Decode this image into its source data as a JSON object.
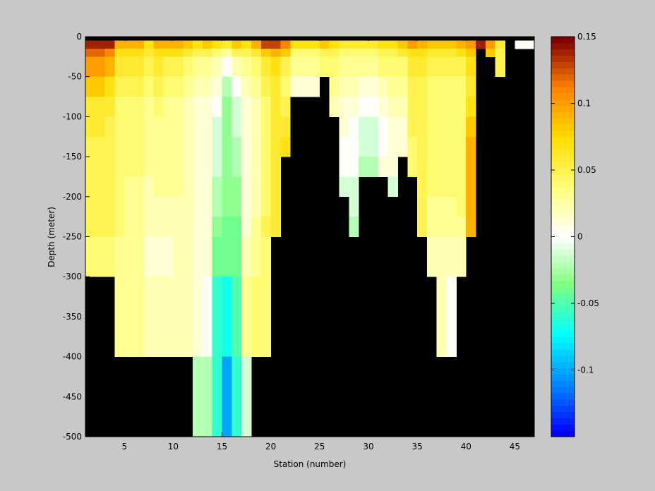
{
  "chart_data": {
    "type": "heatmap",
    "xlabel": "Station (number)",
    "ylabel": "Depth (meter)",
    "xlim": [
      1,
      47
    ],
    "ylim": [
      -500,
      0
    ],
    "xticks": [
      5,
      10,
      15,
      20,
      25,
      30,
      35,
      40,
      45
    ],
    "xtick_labels": [
      "5",
      "10",
      "15",
      "20",
      "25",
      "30",
      "35",
      "40",
      "45"
    ],
    "yticks": [
      0,
      -50,
      -100,
      -150,
      -200,
      -250,
      -300,
      -350,
      -400,
      -450,
      -500
    ],
    "ytick_labels": [
      "0",
      "-50",
      "-100",
      "-150",
      "-200",
      "-250",
      "-300",
      "-350",
      "-400",
      "-450",
      "-500"
    ],
    "colorbar": {
      "colormap": "jet-white",
      "clim": [
        -0.15,
        0.15
      ],
      "ticks": [
        0.15,
        0.1,
        0.05,
        0,
        -0.05,
        -0.1
      ],
      "tick_labels": [
        "0.15",
        "0.1",
        "0.05",
        "0",
        "-0.05",
        "-0.1"
      ],
      "levels": 64
    },
    "mask_color": "#000000",
    "depth_bins": [
      {
        "top": 0,
        "bottom": -5
      },
      {
        "top": -5,
        "bottom": -15
      },
      {
        "top": -15,
        "bottom": -25
      },
      {
        "top": -25,
        "bottom": -50
      },
      {
        "top": -50,
        "bottom": -75
      },
      {
        "top": -75,
        "bottom": -100
      },
      {
        "top": -100,
        "bottom": -125
      },
      {
        "top": -125,
        "bottom": -150
      },
      {
        "top": -150,
        "bottom": -175
      },
      {
        "top": -175,
        "bottom": -200
      },
      {
        "top": -200,
        "bottom": -225
      },
      {
        "top": -225,
        "bottom": -250
      },
      {
        "top": -250,
        "bottom": -300
      },
      {
        "top": -300,
        "bottom": -400
      },
      {
        "top": -400,
        "bottom": -500
      }
    ],
    "station_columns": [
      {
        "from": 1,
        "to": 3,
        "values": [
          null,
          0.14,
          0.12,
          0.1,
          0.08,
          0.06,
          0.06,
          0.05,
          0.05,
          0.05,
          0.05,
          0.05,
          0.04,
          null,
          null
        ]
      },
      {
        "from": 3,
        "to": 4,
        "values": [
          null,
          0.14,
          0.11,
          0.09,
          0.07,
          0.06,
          0.05,
          0.05,
          0.05,
          0.05,
          0.05,
          0.05,
          0.04,
          null,
          null
        ]
      },
      {
        "from": 4,
        "to": 5,
        "values": [
          null,
          0.09,
          0.07,
          0.06,
          0.05,
          0.04,
          0.04,
          0.04,
          0.04,
          0.04,
          0.04,
          0.04,
          0.03,
          0.03,
          null
        ]
      },
      {
        "from": 5,
        "to": 7,
        "values": [
          null,
          0.09,
          0.07,
          0.06,
          0.05,
          0.04,
          0.04,
          0.04,
          0.04,
          0.03,
          0.03,
          0.03,
          0.03,
          0.03,
          null
        ]
      },
      {
        "from": 7,
        "to": 8,
        "values": [
          null,
          0.07,
          0.06,
          0.05,
          0.04,
          0.03,
          0.03,
          0.03,
          0.03,
          0.02,
          0.02,
          0.02,
          0.01,
          0.02,
          null
        ]
      },
      {
        "from": 8,
        "to": 9,
        "values": [
          null,
          0.09,
          0.07,
          0.06,
          0.05,
          0.04,
          0.03,
          0.03,
          0.03,
          0.03,
          0.02,
          0.02,
          0.01,
          0.02,
          null
        ]
      },
      {
        "from": 9,
        "to": 10,
        "values": [
          null,
          0.09,
          0.07,
          0.05,
          0.04,
          0.03,
          0.03,
          0.03,
          0.03,
          0.03,
          0.02,
          0.02,
          0.01,
          0.02,
          null
        ]
      },
      {
        "from": 10,
        "to": 11,
        "values": [
          null,
          0.09,
          0.07,
          0.05,
          0.04,
          0.03,
          0.03,
          0.03,
          0.03,
          0.03,
          0.02,
          0.02,
          0.02,
          0.02,
          null
        ]
      },
      {
        "from": 11,
        "to": 12,
        "values": [
          null,
          0.08,
          0.06,
          0.04,
          0.03,
          0.02,
          0.02,
          0.02,
          0.02,
          0.02,
          0.02,
          0.02,
          0.02,
          0.02,
          null
        ]
      },
      {
        "from": 12,
        "to": 13,
        "values": [
          null,
          0.07,
          0.05,
          0.03,
          0.02,
          0.01,
          0.01,
          0.01,
          0.01,
          0.01,
          0.01,
          0.01,
          0.01,
          0.01,
          -0.02
        ]
      },
      {
        "from": 13,
        "to": 14,
        "values": [
          null,
          0.08,
          0.05,
          0.03,
          0.02,
          0.01,
          0.01,
          0.01,
          0.01,
          0.01,
          0.01,
          0.01,
          0.01,
          0.0,
          -0.02
        ]
      },
      {
        "from": 14,
        "to": 15,
        "values": [
          null,
          0.07,
          0.04,
          0.02,
          0.01,
          0.0,
          -0.01,
          -0.01,
          -0.01,
          -0.02,
          -0.02,
          -0.03,
          -0.04,
          -0.06,
          -0.06
        ]
      },
      {
        "from": 15,
        "to": 16,
        "values": [
          null,
          0.06,
          0.03,
          0.0,
          -0.02,
          -0.03,
          -0.03,
          -0.03,
          -0.03,
          -0.03,
          -0.03,
          -0.04,
          -0.04,
          -0.07,
          -0.1
        ]
      },
      {
        "from": 16,
        "to": 17,
        "values": [
          null,
          0.08,
          0.05,
          0.02,
          0.0,
          -0.01,
          -0.01,
          -0.02,
          -0.02,
          -0.03,
          -0.03,
          -0.04,
          -0.04,
          -0.05,
          -0.06
        ]
      },
      {
        "from": 17,
        "to": 18,
        "values": [
          null,
          0.07,
          0.05,
          0.03,
          0.02,
          0.01,
          0.01,
          0.01,
          0.01,
          0.01,
          0.01,
          0.01,
          0.02,
          0.03,
          -0.01
        ]
      },
      {
        "from": 18,
        "to": 19,
        "values": [
          null,
          0.09,
          0.06,
          0.04,
          0.03,
          0.02,
          0.02,
          0.02,
          0.02,
          0.02,
          0.02,
          0.03,
          0.03,
          0.04,
          null
        ]
      },
      {
        "from": 19,
        "to": 20,
        "values": [
          null,
          0.13,
          0.08,
          0.06,
          0.05,
          0.04,
          0.04,
          0.04,
          0.04,
          0.04,
          0.04,
          0.05,
          0.04,
          0.04,
          null
        ]
      },
      {
        "from": 20,
        "to": 21,
        "values": [
          null,
          0.13,
          0.09,
          0.07,
          0.06,
          0.06,
          0.06,
          0.06,
          0.06,
          0.06,
          0.06,
          0.06,
          null,
          null,
          null
        ]
      },
      {
        "from": 21,
        "to": 22,
        "values": [
          null,
          0.11,
          0.08,
          0.05,
          0.04,
          0.05,
          0.06,
          0.07,
          null,
          null,
          null,
          null,
          null,
          null,
          null
        ]
      },
      {
        "from": 22,
        "to": 25,
        "values": [
          null,
          0.07,
          0.04,
          0.03,
          0.01,
          null,
          null,
          null,
          null,
          null,
          null,
          null,
          null,
          null,
          null
        ]
      },
      {
        "from": 25,
        "to": 26,
        "values": [
          null,
          0.08,
          0.05,
          0.04,
          null,
          null,
          null,
          null,
          null,
          null,
          null,
          null,
          null,
          null,
          null
        ]
      },
      {
        "from": 26,
        "to": 27,
        "values": [
          null,
          0.07,
          0.05,
          0.04,
          0.03,
          0.02,
          null,
          null,
          null,
          null,
          null,
          null,
          null,
          null,
          null
        ]
      },
      {
        "from": 27,
        "to": 28,
        "values": [
          null,
          0.06,
          0.04,
          0.03,
          0.02,
          0.01,
          0.01,
          0.0,
          0.0,
          -0.01,
          null,
          null,
          null,
          null,
          null
        ]
      },
      {
        "from": 28,
        "to": 29,
        "values": [
          null,
          0.06,
          0.04,
          0.03,
          0.02,
          0.01,
          0.0,
          0.0,
          0.0,
          -0.01,
          -0.01,
          -0.02,
          null,
          null,
          null
        ]
      },
      {
        "from": 29,
        "to": 31,
        "values": [
          null,
          0.06,
          0.04,
          0.03,
          0.01,
          0.0,
          -0.01,
          -0.01,
          -0.02,
          null,
          null,
          null,
          null,
          null,
          null
        ]
      },
      {
        "from": 31,
        "to": 32,
        "values": [
          null,
          0.07,
          0.05,
          0.04,
          0.02,
          0.01,
          0.0,
          0.0,
          0.01,
          null,
          null,
          null,
          null,
          null,
          null
        ]
      },
      {
        "from": 32,
        "to": 33,
        "values": [
          null,
          0.07,
          0.05,
          0.04,
          0.03,
          0.02,
          0.01,
          0.01,
          0.01,
          -0.01,
          null,
          null,
          null,
          null,
          null
        ]
      },
      {
        "from": 33,
        "to": 34,
        "values": [
          null,
          0.08,
          0.06,
          0.04,
          0.03,
          0.02,
          0.01,
          0.01,
          null,
          null,
          null,
          null,
          null,
          null,
          null
        ]
      },
      {
        "from": 34,
        "to": 35,
        "values": [
          null,
          0.1,
          0.07,
          0.06,
          0.05,
          0.05,
          0.05,
          0.04,
          0.04,
          null,
          null,
          null,
          null,
          null,
          null
        ]
      },
      {
        "from": 35,
        "to": 36,
        "values": [
          null,
          0.09,
          0.07,
          0.06,
          0.05,
          0.05,
          0.05,
          0.05,
          0.05,
          0.05,
          0.05,
          0.05,
          null,
          null,
          null
        ]
      },
      {
        "from": 36,
        "to": 37,
        "values": [
          null,
          0.08,
          0.06,
          0.05,
          0.04,
          0.04,
          0.04,
          0.04,
          0.04,
          0.04,
          0.03,
          0.03,
          0.02,
          null,
          null
        ]
      },
      {
        "from": 37,
        "to": 38,
        "values": [
          null,
          0.08,
          0.06,
          0.05,
          0.04,
          0.04,
          0.04,
          0.04,
          0.04,
          0.04,
          0.03,
          0.03,
          0.02,
          0.02,
          null
        ]
      },
      {
        "from": 38,
        "to": 39,
        "values": [
          null,
          0.08,
          0.06,
          0.05,
          0.04,
          0.04,
          0.04,
          0.04,
          0.04,
          0.04,
          0.03,
          0.03,
          0.02,
          0.0,
          null
        ]
      },
      {
        "from": 39,
        "to": 40,
        "values": [
          null,
          0.09,
          0.07,
          0.05,
          0.04,
          0.04,
          0.04,
          0.04,
          0.04,
          0.04,
          0.04,
          0.03,
          0.02,
          null,
          null
        ]
      },
      {
        "from": 40,
        "to": 41,
        "values": [
          null,
          0.1,
          0.08,
          0.07,
          0.06,
          0.07,
          0.08,
          0.09,
          0.09,
          0.09,
          0.09,
          0.09,
          null,
          null,
          null
        ]
      },
      {
        "from": 41,
        "to": 42,
        "values": [
          null,
          0.14,
          null,
          null,
          null,
          null,
          null,
          null,
          null,
          null,
          null,
          null,
          null,
          null,
          null
        ]
      },
      {
        "from": 42,
        "to": 43,
        "values": [
          null,
          0.1,
          0.08,
          null,
          null,
          null,
          null,
          null,
          null,
          null,
          null,
          null,
          null,
          null,
          null
        ]
      },
      {
        "from": 43,
        "to": 44,
        "values": [
          null,
          0.06,
          0.05,
          0.05,
          null,
          null,
          null,
          null,
          null,
          null,
          null,
          null,
          null,
          null,
          null
        ]
      },
      {
        "from": 44,
        "to": 45,
        "values": [
          null,
          null,
          null,
          null,
          null,
          null,
          null,
          null,
          null,
          null,
          null,
          null,
          null,
          null,
          null
        ]
      },
      {
        "from": 45,
        "to": 47,
        "values": [
          null,
          0.0,
          null,
          null,
          null,
          null,
          null,
          null,
          null,
          null,
          null,
          null,
          null,
          null,
          null
        ]
      }
    ]
  }
}
